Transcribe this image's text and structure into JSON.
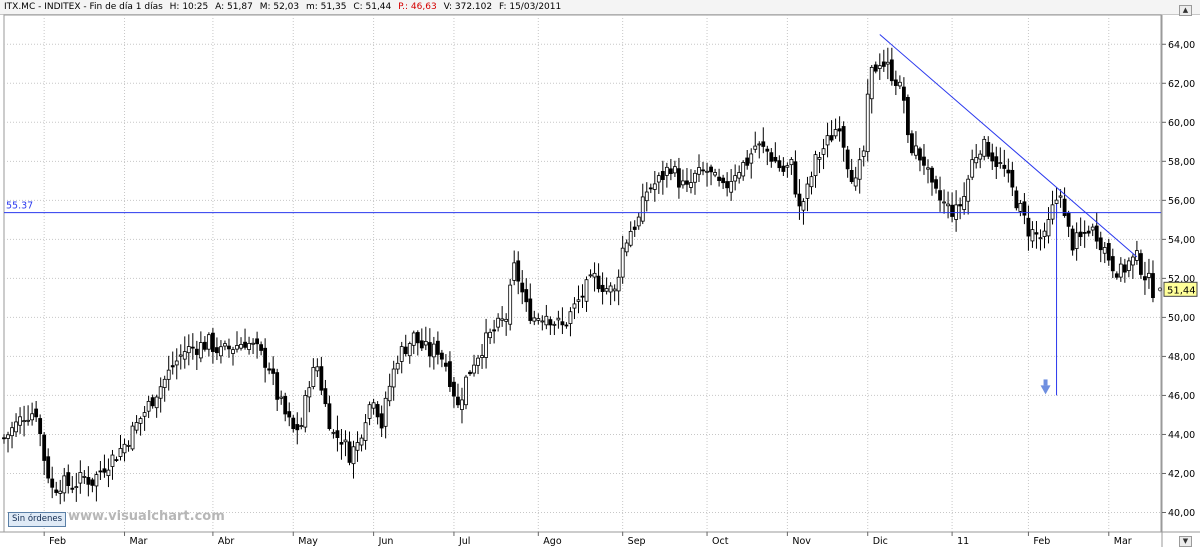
{
  "header": {
    "symbol": "ITX.MC - INDITEX - Fin de día 1 días",
    "open": "H: 10:25",
    "a": "A: 51,87",
    "m_high": "M: 52,03",
    "m_low": "m: 51,35",
    "close": "C: 51,44",
    "p": "P.: 46,63",
    "volume": "V: 372.102",
    "date": "F: 15/03/2011"
  },
  "colors": {
    "grid": "#c7c7c7",
    "candle": "#000000",
    "annotation": "#2a38ee",
    "price_label_bg": "#ffff99"
  },
  "status_badge": "Sin órdenes",
  "watermark": "www.visualchart.com",
  "chart_data": {
    "type": "candlestick",
    "title": "",
    "ylim": [
      39,
      65.5
    ],
    "y_ticks": [
      "40,00",
      "42,00",
      "44,00",
      "46,00",
      "48,00",
      "50,00",
      "52,00",
      "54,00",
      "56,00",
      "58,00",
      "60,00",
      "62,00",
      "64,00"
    ],
    "x_ticks": [
      "Feb",
      "Mar",
      "Abr",
      "May",
      "Jun",
      "Jul",
      "Ago",
      "Sep",
      "Oct",
      "Nov",
      "Dic",
      "11",
      "Feb",
      "Mar"
    ],
    "x_range": [
      0,
      288
    ],
    "x_tick_positions": [
      10,
      30,
      52,
      72,
      92,
      112,
      133,
      154,
      175,
      195,
      215,
      236,
      255,
      275
    ],
    "last_price": "51,44",
    "resistance": {
      "label": "55.37",
      "value": 55.37
    },
    "trendline": {
      "from": [
        218,
        64.5
      ],
      "to": [
        282,
        53.1
      ]
    },
    "projection": {
      "x": 262,
      "from": 55.8,
      "to": 46.0
    },
    "price_path": [
      [
        0,
        43.8
      ],
      [
        3,
        44.5
      ],
      [
        5,
        45
      ],
      [
        8,
        45.2
      ],
      [
        10,
        42.8
      ],
      [
        12,
        41.2
      ],
      [
        14,
        41.5
      ],
      [
        17,
        41.4
      ],
      [
        20,
        41.8
      ],
      [
        22,
        41.6
      ],
      [
        25,
        42.4
      ],
      [
        28,
        43
      ],
      [
        30,
        43.5
      ],
      [
        33,
        44.5
      ],
      [
        36,
        45.5
      ],
      [
        38,
        46.2
      ],
      [
        40,
        46.8
      ],
      [
        42,
        47.5
      ],
      [
        45,
        48.3
      ],
      [
        48,
        48.5
      ],
      [
        51,
        48.7
      ],
      [
        54,
        48.2
      ],
      [
        57,
        48.5
      ],
      [
        60,
        48.8
      ],
      [
        63,
        48.3
      ],
      [
        66,
        47.5
      ],
      [
        68,
        46
      ],
      [
        70,
        45
      ],
      [
        72,
        44.2
      ],
      [
        74,
        44.5
      ],
      [
        76,
        46.8
      ],
      [
        78,
        47.5
      ],
      [
        80,
        45.5
      ],
      [
        82,
        44
      ],
      [
        84,
        43.8
      ],
      [
        86,
        43
      ],
      [
        88,
        43.5
      ],
      [
        90,
        45
      ],
      [
        92,
        46
      ],
      [
        94,
        44.5
      ],
      [
        96,
        46.5
      ],
      [
        98,
        48
      ],
      [
        100,
        48.5
      ],
      [
        102,
        49
      ],
      [
        104,
        48.5
      ],
      [
        106,
        48.2
      ],
      [
        108,
        48.4
      ],
      [
        110,
        47.6
      ],
      [
        112,
        46.2
      ],
      [
        113,
        45.4
      ],
      [
        115,
        46.8
      ],
      [
        117,
        47.8
      ],
      [
        120,
        48.8
      ],
      [
        122,
        49.3
      ],
      [
        125,
        50
      ],
      [
        127,
        52.5
      ],
      [
        128,
        52
      ],
      [
        130,
        50.5
      ],
      [
        132,
        50
      ],
      [
        135,
        50.2
      ],
      [
        137,
        49.8
      ],
      [
        139,
        49.5
      ],
      [
        142,
        50.5
      ],
      [
        145,
        51.5
      ],
      [
        147,
        52
      ],
      [
        150,
        51.5
      ],
      [
        152,
        51.3
      ],
      [
        154,
        53.5
      ],
      [
        156,
        54.5
      ],
      [
        158,
        55
      ],
      [
        160,
        56.5
      ],
      [
        163,
        57
      ],
      [
        166,
        57.8
      ],
      [
        168,
        57
      ],
      [
        170,
        56.5
      ],
      [
        172,
        57.2
      ],
      [
        175,
        57.5
      ],
      [
        177,
        57
      ],
      [
        179,
        56.5
      ],
      [
        182,
        57.5
      ],
      [
        185,
        58
      ],
      [
        187,
        58.8
      ],
      [
        190,
        58.5
      ],
      [
        192,
        58
      ],
      [
        194,
        57.5
      ],
      [
        196,
        57.8
      ],
      [
        198,
        55.5
      ],
      [
        200,
        56.5
      ],
      [
        202,
        58
      ],
      [
        205,
        59
      ],
      [
        208,
        60
      ],
      [
        210,
        58
      ],
      [
        212,
        56.8
      ],
      [
        214,
        58.5
      ],
      [
        215,
        61
      ],
      [
        216,
        62.5
      ],
      [
        218,
        63.2
      ],
      [
        220,
        62.8
      ],
      [
        222,
        62.2
      ],
      [
        224,
        61.2
      ],
      [
        225,
        59
      ],
      [
        227,
        58.5
      ],
      [
        229,
        58
      ],
      [
        231,
        56.5
      ],
      [
        233,
        56
      ],
      [
        235,
        55.6
      ],
      [
        237,
        55.4
      ],
      [
        239,
        56.2
      ],
      [
        241,
        58
      ],
      [
        243,
        58.8
      ],
      [
        245,
        58.6
      ],
      [
        247,
        58
      ],
      [
        249,
        57.5
      ],
      [
        251,
        56.5
      ],
      [
        253,
        55.5
      ],
      [
        255,
        54.5
      ],
      [
        257,
        54.2
      ],
      [
        259,
        54
      ],
      [
        261,
        55.5
      ],
      [
        263,
        56.6
      ],
      [
        264,
        55
      ],
      [
        266,
        53.8
      ],
      [
        268,
        54
      ],
      [
        270,
        54.6
      ],
      [
        272,
        54.3
      ],
      [
        274,
        53.5
      ],
      [
        276,
        52.7
      ],
      [
        278,
        52.3
      ],
      [
        280,
        52.8
      ],
      [
        282,
        53
      ],
      [
        284,
        52.2
      ],
      [
        286,
        51.44
      ]
    ]
  }
}
